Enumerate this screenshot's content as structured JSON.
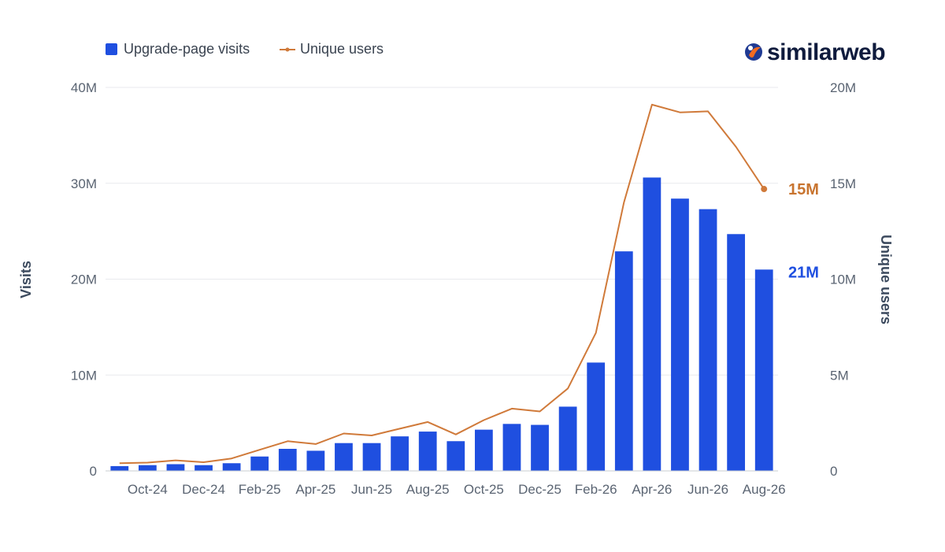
{
  "brand": {
    "name": "similarweb",
    "logo_colors": [
      "#1f3a93",
      "#f36b21"
    ],
    "text_color": "#0f1b3d"
  },
  "legend": {
    "position": "top-left",
    "items": [
      {
        "label": "Upgrade-page visits",
        "symbol": "square",
        "color": "#1f4fe0"
      },
      {
        "label": "Unique users",
        "symbol": "line-dot",
        "color": "#d07a3a"
      }
    ]
  },
  "chart_data": {
    "type": "bar+line",
    "categories": [
      "Sep-24",
      "Oct-24",
      "Nov-24",
      "Dec-24",
      "Jan-25",
      "Feb-25",
      "Mar-25",
      "Apr-25",
      "May-25",
      "Jun-25",
      "Jul-25",
      "Aug-25",
      "Sep-25",
      "Oct-25",
      "Nov-25",
      "Dec-25",
      "Jan-26",
      "Feb-26",
      "Mar-26",
      "Apr-26",
      "May-26",
      "Jun-26",
      "Jul-26",
      "Aug-26"
    ],
    "x_tick_labels": [
      "Oct-24",
      "Dec-24",
      "Feb-25",
      "Apr-25",
      "Jun-25",
      "Aug-25",
      "Oct-25",
      "Dec-25",
      "Feb-26",
      "Apr-26",
      "Jun-26",
      "Aug-26"
    ],
    "x_tick_categories": [
      "Oct-24",
      "Dec-24",
      "Feb-25",
      "Apr-25",
      "Jun-25",
      "Aug-25",
      "Oct-25",
      "Dec-25",
      "Feb-26",
      "Apr-26",
      "Jun-26",
      "Aug-26"
    ],
    "series": [
      {
        "name": "Upgrade-page visits",
        "type": "bar",
        "axis": "left",
        "color": "#1f4fe0",
        "values": [
          0.5,
          0.6,
          0.7,
          0.6,
          0.8,
          1.5,
          2.3,
          2.1,
          2.9,
          2.9,
          3.6,
          4.1,
          3.1,
          4.3,
          4.9,
          4.8,
          6.7,
          11.3,
          22.9,
          30.6,
          28.4,
          27.3,
          24.7,
          21.0
        ],
        "end_label": "21M"
      },
      {
        "name": "Unique users",
        "type": "line",
        "axis": "right",
        "color": "#d07a3a",
        "values": [
          0.4,
          0.43,
          0.55,
          0.45,
          0.65,
          1.1,
          1.55,
          1.4,
          1.95,
          1.85,
          2.2,
          2.55,
          1.9,
          2.65,
          3.25,
          3.1,
          4.3,
          7.2,
          14.0,
          19.1,
          18.7,
          18.75,
          16.9,
          14.7
        ],
        "end_label": "15M"
      }
    ],
    "left_axis": {
      "title": "Visits",
      "min": 0,
      "max": 40,
      "ticks": [
        0,
        10,
        20,
        30,
        40
      ],
      "tick_labels": [
        "0",
        "10M",
        "20M",
        "30M",
        "40M"
      ]
    },
    "right_axis": {
      "title": "Unique users",
      "min": 0,
      "max": 20,
      "ticks": [
        0,
        5,
        10,
        15,
        20
      ],
      "tick_labels": [
        "0",
        "5M",
        "10M",
        "15M",
        "20M"
      ]
    },
    "grid": true,
    "colors": {
      "grid": "#e8eaee",
      "baseline": "#c9ccd2",
      "bar": "#1f4fe0",
      "line": "#d07a3a",
      "bar_label": "#1f4fe0",
      "line_label": "#c8742f"
    }
  }
}
